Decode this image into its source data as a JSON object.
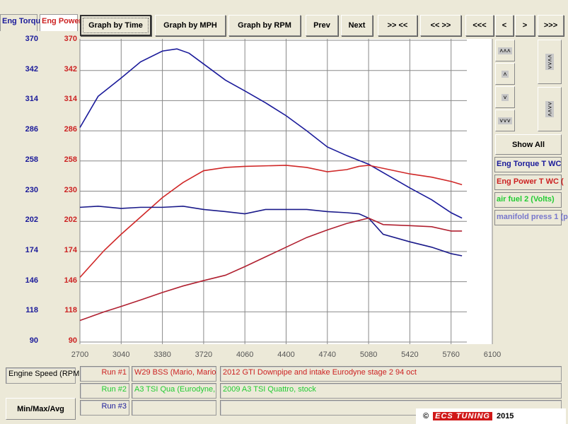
{
  "tabs": [
    {
      "label": "Eng Torque",
      "color": "#1a1a9a"
    },
    {
      "label": "Eng Power",
      "color": "#cc2222"
    }
  ],
  "toolbar": {
    "graph_time": "Graph by Time",
    "graph_mph": "Graph by MPH",
    "graph_rpm": "Graph by RPM",
    "prev": "Prev",
    "next": "Next",
    "zoom_in": ">> <<",
    "zoom_out": "<< >>",
    "first": "<<<",
    "back": "<",
    "fwd": ">",
    "last": ">>>"
  },
  "side": {
    "up_fast": "˄˄˄",
    "up": "˄",
    "down": "˅",
    "down_fast": "˅˅˅",
    "compress": "˅˅˄˄",
    "expand": "˄˄˅˅",
    "show_all": "Show All",
    "legend": [
      {
        "label": "Eng Torque T WC",
        "color": "#1a1a9a"
      },
      {
        "label": "Eng Power T WC (",
        "color": "#cc2222"
      },
      {
        "label": "air fuel 2 (Volts)",
        "color": "#22cc33"
      },
      {
        "label": "manifold press 1 (p",
        "color": "#7777cc"
      }
    ]
  },
  "chart_data": {
    "type": "line",
    "x_ticks": [
      "2700",
      "3040",
      "3380",
      "3720",
      "4060",
      "4400",
      "4740",
      "5080",
      "5420",
      "5760",
      "6100"
    ],
    "xlim": [
      2700,
      6100
    ],
    "y_ticks_left": [
      "370",
      "342",
      "314",
      "286",
      "258",
      "230",
      "202",
      "174",
      "146",
      "118",
      "90"
    ],
    "y_ticks_right": [
      "370",
      "342",
      "314",
      "286",
      "258",
      "230",
      "202",
      "174",
      "146",
      "118",
      "90"
    ],
    "ylim": [
      90,
      370
    ],
    "grid": true,
    "series": [
      {
        "color": "#1a1a9a",
        "x": [
          2700,
          2850,
          3040,
          3200,
          3380,
          3500,
          3600,
          3720,
          3900,
          4060,
          4230,
          4400,
          4570,
          4740,
          4900,
          5080,
          5250,
          5420,
          5600,
          5760,
          5850
        ],
        "y": [
          289,
          318,
          335,
          350,
          360,
          362,
          358,
          348,
          333,
          323,
          312,
          300,
          286,
          271,
          263,
          255,
          244,
          233,
          222,
          210,
          205
        ]
      },
      {
        "color": "#d02828",
        "x": [
          2700,
          2900,
          3040,
          3200,
          3380,
          3550,
          3720,
          3900,
          4060,
          4400,
          4570,
          4740,
          4900,
          5000,
          5080,
          5250,
          5420,
          5600,
          5760,
          5850
        ],
        "y": [
          150,
          175,
          190,
          206,
          224,
          238,
          249,
          252,
          253,
          254,
          252,
          248,
          250,
          253,
          254,
          250,
          246,
          243,
          239,
          236
        ]
      },
      {
        "color": "#1a1a8a",
        "x": [
          2700,
          2850,
          3040,
          3200,
          3380,
          3550,
          3720,
          3900,
          4060,
          4230,
          4400,
          4570,
          4740,
          4900,
          5000,
          5080,
          5200,
          5420,
          5600,
          5760,
          5850
        ],
        "y": [
          215,
          216,
          214,
          215,
          215,
          216,
          213,
          211,
          209,
          213,
          213,
          213,
          211,
          210,
          209,
          205,
          190,
          183,
          178,
          172,
          170
        ]
      },
      {
        "color": "#b02030",
        "x": [
          2700,
          2900,
          3040,
          3200,
          3380,
          3550,
          3720,
          3900,
          4060,
          4230,
          4400,
          4570,
          4740,
          4900,
          5080,
          5200,
          5420,
          5600,
          5760,
          5850
        ],
        "y": [
          110,
          118,
          123,
          129,
          136,
          142,
          147,
          152,
          160,
          169,
          178,
          187,
          194,
          200,
          205,
          199,
          198,
          197,
          193,
          193
        ]
      }
    ]
  },
  "bottom": {
    "axis_label": "Engine Speed (RPM",
    "minmax": "Min/Max/Avg",
    "runs": [
      {
        "label": "Run #1",
        "name": "W29 BSS (Mario, Mario",
        "desc": "2012 GTI Downpipe and intake Eurodyne stage 2 94 oct",
        "color": "#cc2222"
      },
      {
        "label": "Run #2",
        "name": "A3 TSI Qua (Eurodyne,",
        "desc": "2009 A3 TSI Quattro, stock",
        "color": "#22cc33"
      },
      {
        "label": "Run #3",
        "name": "",
        "desc": "",
        "color": "#1a1a9a"
      }
    ]
  },
  "watermark": {
    "copyright": "©",
    "brand": "ECS TUNING",
    "year": "2015"
  }
}
